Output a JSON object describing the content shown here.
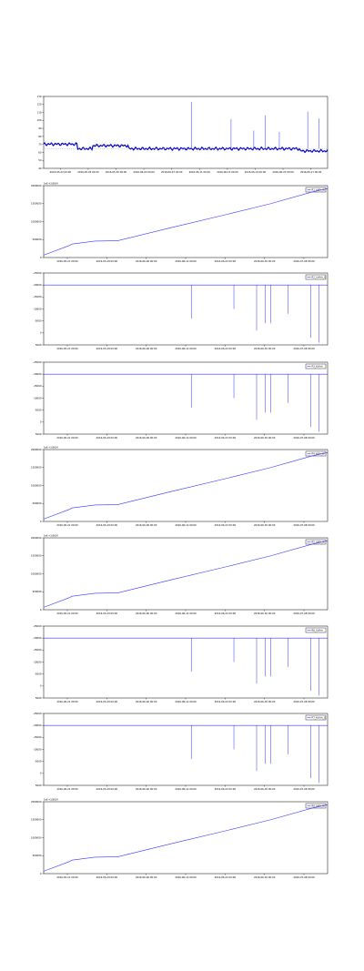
{
  "colors": {
    "series": "#3333ff",
    "marker": "#0000cc",
    "frame": "#000000"
  },
  "chart_data": [
    {
      "type": "scatter",
      "name": "panel-1",
      "legend": "",
      "sci_label": "",
      "ylim": [
        40,
        135
      ],
      "yticks": [
        "40",
        "50",
        "60",
        "70",
        "80",
        "90",
        "100",
        "110",
        "120",
        "130"
      ],
      "xticks": [
        "2016-05-22 00:00",
        "2016-05-26 00:00",
        "2016-05-30 00:00",
        "2016-06-03 00:00",
        "2016-06-07 00:00",
        "2016-06-11 00:00",
        "2016-06-15 00:00",
        "2016-06-19 00:00",
        "2016-06-23 00:00",
        "2016-06-27 00:00"
      ],
      "baseline": 66,
      "spikes": [
        [
          0.52,
          128
        ],
        [
          0.66,
          105
        ],
        [
          0.74,
          90
        ],
        [
          0.78,
          110
        ],
        [
          0.83,
          88
        ],
        [
          0.93,
          115
        ],
        [
          0.97,
          106
        ]
      ]
    },
    {
      "type": "line",
      "name": "panel-2",
      "legend": "R1_kWh_W",
      "sci_label": "1e6 +3.8614",
      "ylim": [
        0,
        2.4
      ],
      "yticks": [
        "0",
        "500000",
        "1000000",
        "1500000",
        "2000000"
      ],
      "xticks": [
        "2016-05-21 00:00",
        "2016-05-29 00:00",
        "2016-06-06 00:00",
        "2016-06-14 00:00",
        "2016-06-22 00:00",
        "2016-06-30 00:00",
        "2016-07-08 00:00"
      ],
      "points": [
        [
          0,
          0.08
        ],
        [
          0.09,
          0.4
        ],
        [
          0.1,
          0.45
        ],
        [
          0.18,
          0.55
        ],
        [
          0.26,
          0.56
        ],
        [
          0.45,
          1.0
        ],
        [
          0.65,
          1.45
        ],
        [
          0.8,
          1.8
        ],
        [
          0.95,
          2.2
        ],
        [
          1.0,
          2.3
        ]
      ]
    },
    {
      "type": "line",
      "name": "panel-3",
      "legend": "R2_kVArh_Q",
      "sci_label": "",
      "ylim": [
        -25000,
        5000
      ],
      "yticks": [
        "5000",
        "0",
        "-5000",
        "-10000",
        "-15000",
        "-20000",
        "-25000"
      ],
      "xticks": [
        "2016-05-21 00:00",
        "2016-05-29 00:00",
        "2016-06-06 00:00",
        "2016-06-14 00:00",
        "2016-06-22 00:00",
        "2016-06-30 00:00",
        "2016-07-08 00:00"
      ],
      "baseline": 0,
      "dips": [
        [
          0.52,
          -14000
        ],
        [
          0.67,
          -10000
        ],
        [
          0.75,
          -19000
        ],
        [
          0.78,
          -16000
        ],
        [
          0.8,
          -16000
        ],
        [
          0.86,
          -12000
        ],
        [
          0.94,
          -22000
        ],
        [
          0.97,
          -24000
        ]
      ]
    },
    {
      "type": "line",
      "name": "panel-4",
      "legend": "P3_kVArh",
      "sci_label": "",
      "ylim": [
        -25000,
        5000
      ],
      "yticks": [
        "5000",
        "0",
        "-5000",
        "-10000",
        "-15000",
        "-20000",
        "-25000"
      ],
      "xticks": [
        "2016-05-21 00:00",
        "2016-05-29 00:00",
        "2016-06-06 00:00",
        "2016-06-14 00:00",
        "2016-06-22 00:00",
        "2016-06-30 00:00",
        "2016-07-08 00:00"
      ],
      "baseline": 0,
      "dips": [
        [
          0.52,
          -14000
        ],
        [
          0.67,
          -10000
        ],
        [
          0.75,
          -19000
        ],
        [
          0.78,
          -16000
        ],
        [
          0.8,
          -16000
        ],
        [
          0.86,
          -12000
        ],
        [
          0.94,
          -22000
        ],
        [
          0.97,
          -24000
        ]
      ]
    },
    {
      "type": "line",
      "name": "panel-5",
      "legend": "P4_kWh_W",
      "sci_label": "1e6 +3.8614",
      "ylim": [
        0,
        2.4
      ],
      "yticks": [
        "0",
        "500000",
        "1000000",
        "1500000",
        "2000000"
      ],
      "xticks": [
        "2016-05-21 00:00",
        "2016-05-29 00:00",
        "2016-06-06 00:00",
        "2016-06-14 00:00",
        "2016-06-22 00:00",
        "2016-06-30 00:00",
        "2016-07-08 00:00"
      ],
      "points": [
        [
          0,
          0.08
        ],
        [
          0.09,
          0.4
        ],
        [
          0.1,
          0.45
        ],
        [
          0.18,
          0.55
        ],
        [
          0.26,
          0.56
        ],
        [
          0.45,
          1.0
        ],
        [
          0.65,
          1.45
        ],
        [
          0.8,
          1.8
        ],
        [
          0.95,
          2.2
        ],
        [
          1.0,
          2.3
        ]
      ]
    },
    {
      "type": "line",
      "name": "panel-6",
      "legend": "R5_kWh_W",
      "sci_label": "1e6 +3.8614",
      "ylim": [
        0,
        2.4
      ],
      "yticks": [
        "0",
        "500000",
        "1000000",
        "1500000",
        "2000000"
      ],
      "xticks": [
        "2016-05-21 00:00",
        "2016-05-29 00:00",
        "2016-06-06 00:00",
        "2016-06-14 00:00",
        "2016-06-22 00:00",
        "2016-06-30 00:00",
        "2016-07-08 00:00"
      ],
      "points": [
        [
          0,
          0.08
        ],
        [
          0.09,
          0.4
        ],
        [
          0.1,
          0.45
        ],
        [
          0.18,
          0.55
        ],
        [
          0.26,
          0.56
        ],
        [
          0.45,
          1.0
        ],
        [
          0.65,
          1.45
        ],
        [
          0.8,
          1.8
        ],
        [
          0.95,
          2.2
        ],
        [
          1.0,
          2.3
        ]
      ]
    },
    {
      "type": "line",
      "name": "panel-7",
      "legend": "R6_kVArh",
      "sci_label": "",
      "ylim": [
        -25000,
        5000
      ],
      "yticks": [
        "5000",
        "0",
        "-5000",
        "-10000",
        "-15000",
        "-20000",
        "-25000"
      ],
      "xticks": [
        "2016-05-21 00:00",
        "2016-05-29 00:00",
        "2016-06-06 00:00",
        "2016-06-14 00:00",
        "2016-06-22 00:00",
        "2016-06-30 00:00",
        "2016-07-08 00:00"
      ],
      "baseline": 0,
      "dips": [
        [
          0.52,
          -14000
        ],
        [
          0.67,
          -10000
        ],
        [
          0.75,
          -19000
        ],
        [
          0.78,
          -16000
        ],
        [
          0.8,
          -16000
        ],
        [
          0.86,
          -12000
        ],
        [
          0.94,
          -22000
        ],
        [
          0.97,
          -24000
        ]
      ]
    },
    {
      "type": "line",
      "name": "panel-8",
      "legend": "P7_kVArh_Q",
      "sci_label": "",
      "ylim": [
        -25000,
        5000
      ],
      "yticks": [
        "5000",
        "0",
        "-5000",
        "-10000",
        "-15000",
        "-20000",
        "-25000"
      ],
      "xticks": [
        "2016-05-21 00:00",
        "2016-05-29 00:00",
        "2016-06-06 00:00",
        "2016-06-14 00:00",
        "2016-06-22 00:00",
        "2016-06-30 00:00",
        "2016-07-08 00:00"
      ],
      "baseline": 0,
      "dips": [
        [
          0.52,
          -14000
        ],
        [
          0.67,
          -10000
        ],
        [
          0.75,
          -19000
        ],
        [
          0.78,
          -16000
        ],
        [
          0.8,
          -16000
        ],
        [
          0.86,
          -12000
        ],
        [
          0.94,
          -22000
        ],
        [
          0.97,
          -24000
        ]
      ]
    },
    {
      "type": "line",
      "name": "panel-9",
      "legend": "R8_kWh_W",
      "sci_label": "1e6 +3.8614",
      "ylim": [
        0,
        2.4
      ],
      "yticks": [
        "0",
        "500000",
        "1000000",
        "1500000",
        "2000000"
      ],
      "xticks": [
        "2016-05-21 00:00",
        "2016-05-29 00:00",
        "2016-06-06 00:00",
        "2016-06-14 00:00",
        "2016-06-22 00:00",
        "2016-06-30 00:00",
        "2016-07-08 00:00"
      ],
      "points": [
        [
          0,
          0.08
        ],
        [
          0.09,
          0.4
        ],
        [
          0.1,
          0.45
        ],
        [
          0.18,
          0.55
        ],
        [
          0.26,
          0.56
        ],
        [
          0.45,
          1.0
        ],
        [
          0.65,
          1.45
        ],
        [
          0.8,
          1.8
        ],
        [
          0.95,
          2.2
        ],
        [
          1.0,
          2.3
        ]
      ]
    }
  ]
}
